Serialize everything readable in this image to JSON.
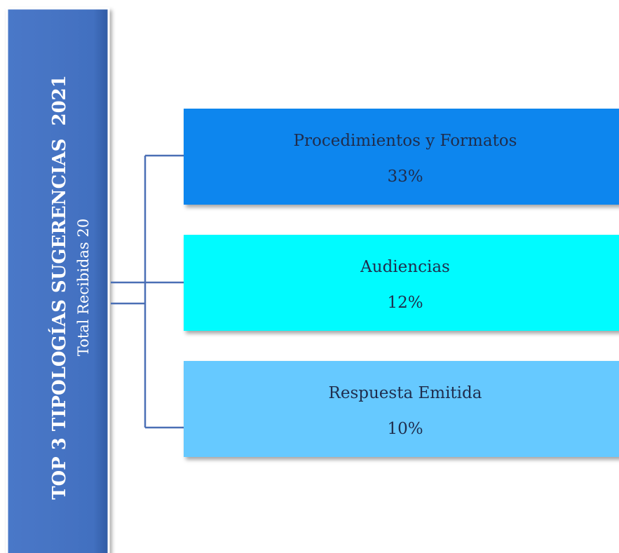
{
  "header": {
    "title": "TOP 3 TIPOLOGÍAS SUGERENCIAS  2021",
    "subtitle": "Total Recibidas 20"
  },
  "nodes": [
    {
      "label": "Procedimientos y Formatos",
      "value": "33%",
      "color": "#0b86ee"
    },
    {
      "label": "Audiencias",
      "value": "12%",
      "color": "#00fbff"
    },
    {
      "label": "Respuesta Emitida",
      "value": "10%",
      "color": "#66c9ff"
    }
  ]
}
